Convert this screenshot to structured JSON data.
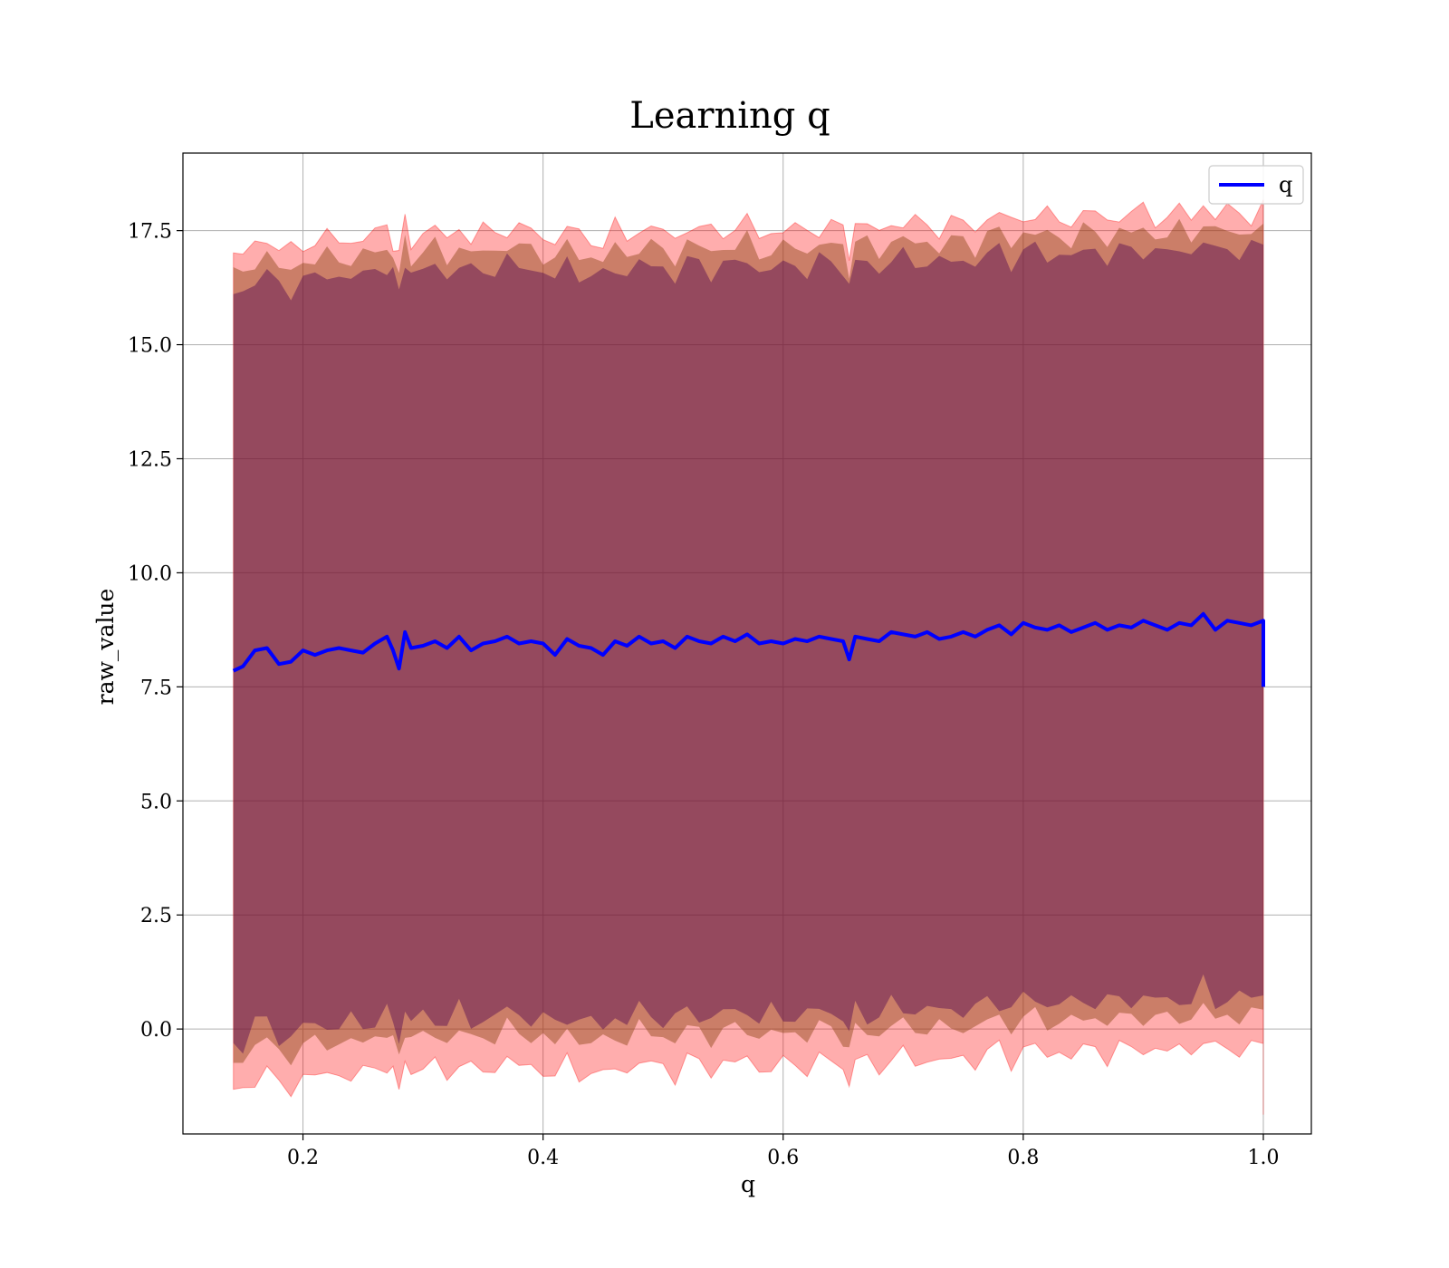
{
  "chart_data": {
    "type": "line",
    "title": "Learning q",
    "xlabel": "q",
    "ylabel": "raw_value",
    "xlim": [
      0.1,
      1.04
    ],
    "ylim": [
      -2.3,
      19.2
    ],
    "grid": true,
    "legend": {
      "placement": "top-right",
      "entries": [
        "q"
      ]
    },
    "x_ticks": [
      {
        "value": 0.2,
        "label": "0.2"
      },
      {
        "value": 0.4,
        "label": "0.4"
      },
      {
        "value": 0.6,
        "label": "0.6"
      },
      {
        "value": 0.8,
        "label": "0.8"
      },
      {
        "value": 1.0,
        "label": "1.0"
      }
    ],
    "y_ticks": [
      {
        "value": 0.0,
        "label": "0.0"
      },
      {
        "value": 2.5,
        "label": "2.5"
      },
      {
        "value": 5.0,
        "label": "5.0"
      },
      {
        "value": 7.5,
        "label": "7.5"
      },
      {
        "value": 10.0,
        "label": "10.0"
      },
      {
        "value": 12.5,
        "label": "12.5"
      },
      {
        "value": 15.0,
        "label": "15.0"
      },
      {
        "value": 17.5,
        "label": "17.5"
      }
    ],
    "colors": {
      "line": "#0000ff",
      "outer_band": "#ff0000",
      "inner_band": "#8b4513",
      "core_band": "#4b0050"
    },
    "series": [
      {
        "name": "q",
        "x": [
          0.142,
          0.15,
          0.16,
          0.17,
          0.18,
          0.19,
          0.2,
          0.21,
          0.22,
          0.23,
          0.24,
          0.25,
          0.26,
          0.27,
          0.275,
          0.28,
          0.285,
          0.29,
          0.3,
          0.31,
          0.32,
          0.33,
          0.34,
          0.35,
          0.36,
          0.37,
          0.38,
          0.39,
          0.4,
          0.41,
          0.42,
          0.43,
          0.44,
          0.45,
          0.46,
          0.47,
          0.48,
          0.49,
          0.5,
          0.51,
          0.52,
          0.53,
          0.54,
          0.55,
          0.56,
          0.57,
          0.58,
          0.59,
          0.6,
          0.61,
          0.62,
          0.63,
          0.64,
          0.65,
          0.655,
          0.66,
          0.67,
          0.68,
          0.69,
          0.7,
          0.71,
          0.72,
          0.73,
          0.74,
          0.75,
          0.76,
          0.77,
          0.78,
          0.79,
          0.8,
          0.81,
          0.82,
          0.83,
          0.84,
          0.85,
          0.86,
          0.87,
          0.88,
          0.89,
          0.9,
          0.91,
          0.92,
          0.93,
          0.94,
          0.95,
          0.96,
          0.97,
          0.98,
          0.99,
          1.0,
          1.0
        ],
        "y": [
          7.85,
          7.95,
          8.3,
          8.35,
          8.0,
          8.05,
          8.3,
          8.2,
          8.3,
          8.35,
          8.3,
          8.25,
          8.45,
          8.6,
          8.3,
          7.9,
          8.7,
          8.35,
          8.4,
          8.5,
          8.35,
          8.6,
          8.3,
          8.45,
          8.5,
          8.6,
          8.45,
          8.5,
          8.45,
          8.2,
          8.55,
          8.4,
          8.35,
          8.2,
          8.5,
          8.4,
          8.6,
          8.45,
          8.5,
          8.35,
          8.6,
          8.5,
          8.45,
          8.6,
          8.5,
          8.65,
          8.45,
          8.5,
          8.45,
          8.55,
          8.5,
          8.6,
          8.55,
          8.5,
          8.1,
          8.6,
          8.55,
          8.5,
          8.7,
          8.65,
          8.6,
          8.7,
          8.55,
          8.6,
          8.7,
          8.6,
          8.75,
          8.85,
          8.65,
          8.9,
          8.8,
          8.75,
          8.85,
          8.7,
          8.8,
          8.9,
          8.75,
          8.85,
          8.8,
          8.95,
          8.85,
          8.75,
          8.9,
          8.85,
          9.1,
          8.75,
          8.95,
          8.9,
          8.85,
          8.95,
          7.5
        ]
      }
    ]
  }
}
